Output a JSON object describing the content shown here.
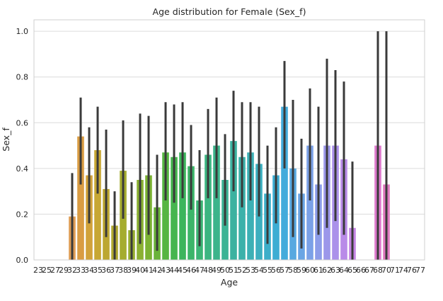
{
  "chart_data": {
    "type": "bar",
    "title": "Age distribution for Female (Sex_f)",
    "xlabel": "Age",
    "ylabel": "Sex_f",
    "ylim": [
      0,
      1.05
    ],
    "yticks": [
      "0.0",
      "0.2",
      "0.4",
      "0.6",
      "0.8",
      "1.0"
    ],
    "ytick_values": [
      0,
      0.2,
      0.4,
      0.6,
      0.8,
      1.0
    ],
    "grid": true,
    "categories": [
      "23",
      "25",
      "27",
      "29",
      "32",
      "33",
      "34",
      "35",
      "36",
      "37",
      "38",
      "39",
      "40",
      "41",
      "42",
      "43",
      "44",
      "45",
      "46",
      "47",
      "48",
      "49",
      "50",
      "51",
      "52",
      "53",
      "54",
      "55",
      "56",
      "57",
      "58",
      "59",
      "60",
      "61",
      "62",
      "63",
      "64",
      "65",
      "66",
      "67",
      "68",
      "70",
      "71",
      "74",
      "76",
      "77"
    ],
    "values": [
      null,
      null,
      null,
      null,
      0.19,
      0.54,
      0.37,
      0.48,
      0.31,
      0.15,
      0.39,
      0.13,
      0.35,
      0.37,
      0.23,
      0.47,
      0.45,
      0.47,
      0.41,
      0.26,
      0.46,
      0.5,
      0.35,
      0.52,
      0.45,
      0.47,
      0.42,
      0.29,
      0.37,
      0.67,
      0.4,
      0.29,
      0.5,
      0.33,
      0.5,
      0.5,
      0.44,
      0.14,
      null,
      null,
      0.5,
      0.33,
      null,
      null,
      null,
      null
    ],
    "ci_low": [
      null,
      null,
      null,
      null,
      0.0,
      0.33,
      0.16,
      0.29,
      0.1,
      0.0,
      0.18,
      0.0,
      0.07,
      0.11,
      0.04,
      0.26,
      0.25,
      0.27,
      0.22,
      0.06,
      0.27,
      0.27,
      0.15,
      0.3,
      0.23,
      0.26,
      0.19,
      0.07,
      0.16,
      0.4,
      0.1,
      0.05,
      0.26,
      0.11,
      0.14,
      0.17,
      0.11,
      0.0,
      null,
      null,
      0.0,
      0.0,
      null,
      null,
      null,
      null
    ],
    "ci_high": [
      null,
      null,
      null,
      null,
      0.38,
      0.71,
      0.58,
      0.67,
      0.57,
      0.3,
      0.61,
      0.34,
      0.64,
      0.63,
      0.46,
      0.69,
      0.68,
      0.69,
      0.59,
      0.48,
      0.66,
      0.71,
      0.55,
      0.74,
      0.69,
      0.69,
      0.67,
      0.5,
      0.58,
      0.87,
      0.7,
      0.53,
      0.75,
      0.67,
      0.88,
      0.83,
      0.78,
      0.43,
      null,
      null,
      1.0,
      1.0,
      null,
      null,
      null,
      null
    ],
    "colors": [
      "#e48a8a",
      "#e38f7e",
      "#e29372",
      "#df9866",
      "#de9c55",
      "#d99c43",
      "#d1a23a",
      "#c7a733",
      "#bca732",
      "#b1a930",
      "#a5ac2f",
      "#98ae30",
      "#8bb032",
      "#7bb233",
      "#6ab33a",
      "#56b542",
      "#46b54f",
      "#3cb55c",
      "#3cb569",
      "#3cb575",
      "#3cb581",
      "#3cb48b",
      "#3cb395",
      "#3cb2a0",
      "#3cb1aa",
      "#3cb0b5",
      "#3cafbf",
      "#3caec9",
      "#3dadd3",
      "#43abdb",
      "#58a8e0",
      "#6aa5e4",
      "#7ba1e7",
      "#8c9ce9",
      "#9c97ea",
      "#ab91ea",
      "#b98be8",
      "#c585e4",
      "#ce80de",
      "#d67bd6",
      "#dc79cc",
      "#df7ac0",
      "#e17bb3",
      "#e27ea6",
      "#e28199",
      "#e2848c"
    ]
  }
}
